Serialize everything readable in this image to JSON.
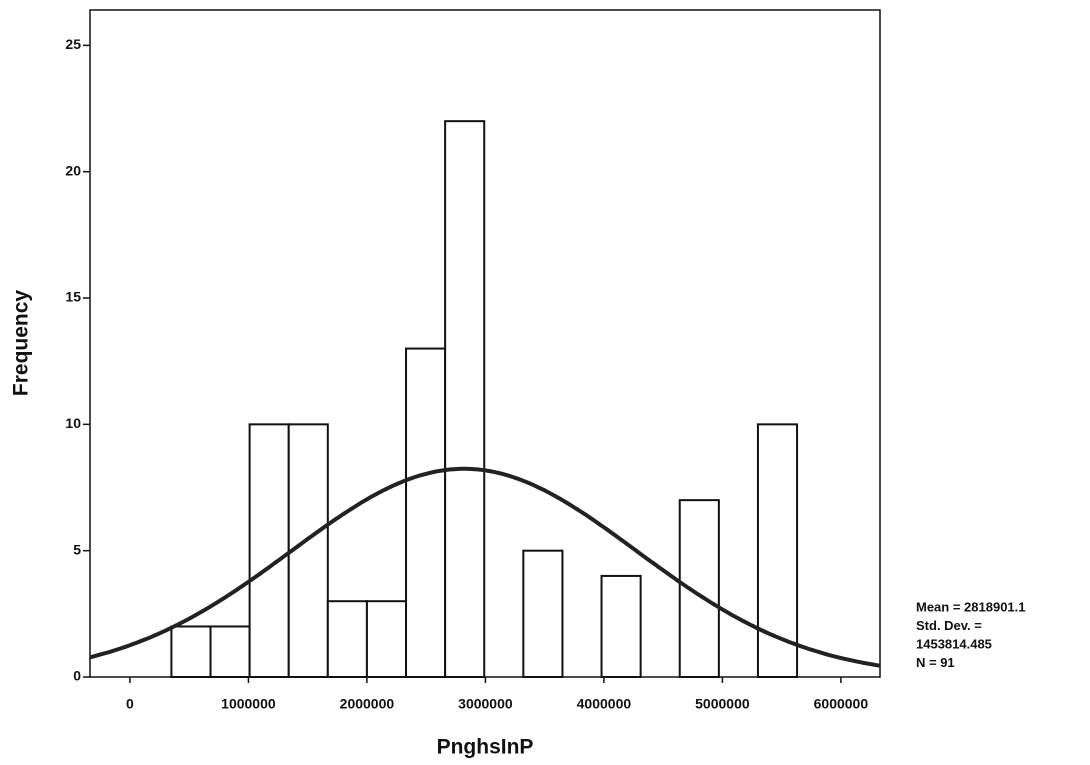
{
  "chart_data": {
    "type": "histogram",
    "x_label": "PnghsInP",
    "y_label": "Frequency",
    "bins": [
      350000,
      680000,
      1010000,
      1340000,
      1670000,
      2000000,
      2330000,
      2660000,
      2990000,
      3320000,
      3650000,
      3980000,
      4310000,
      4640000,
      4970000,
      5300000,
      5630000
    ],
    "counts": [
      2,
      2,
      10,
      10,
      3,
      3,
      13,
      22,
      0,
      5,
      0,
      4,
      0,
      7,
      0,
      10
    ],
    "xlim": [
      -337000,
      6330000
    ],
    "xticks": [
      0,
      1000000,
      2000000,
      3000000,
      4000000,
      5000000,
      6000000
    ],
    "ylim": [
      0,
      26.4
    ],
    "yticks": [
      0,
      5,
      10,
      15,
      20,
      25
    ],
    "color": "#ffffff",
    "normal_curve": {
      "mean": 2818901.1,
      "std": 1453814.485,
      "n": 91,
      "color": "#222222"
    },
    "stats_text": [
      "Mean = 2818901.1",
      "Std. Dev. =",
      "1453814.485",
      "N = 91"
    ]
  }
}
